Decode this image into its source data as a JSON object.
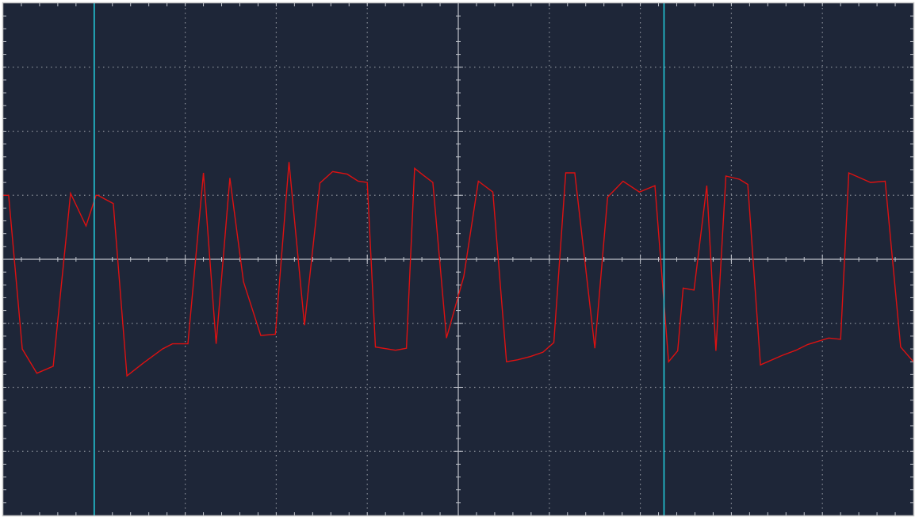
{
  "colors": {
    "screen_background": "#1e2638",
    "frame": "#c8c8c8",
    "grid": "#8a8f99",
    "axis": "#c0c4cc",
    "trace": "#dd1111",
    "cursor": "#22c8d8"
  },
  "chart_data": {
    "type": "line",
    "title": "",
    "xlabel": "",
    "ylabel": "",
    "grid": true,
    "divisions": {
      "x": 10,
      "y": 8
    },
    "minor_ticks_per_division": 5,
    "xlim": [
      -5,
      5
    ],
    "ylim": [
      -4,
      4
    ],
    "cursors_x": [
      -4.0,
      2.26
    ],
    "series": [
      {
        "x": [
          -5.0,
          -4.94,
          -4.79,
          -4.63,
          -4.45,
          -4.26,
          -4.09,
          -3.98,
          -3.96,
          -3.79,
          -3.64,
          -3.46,
          -3.25,
          -3.14,
          -2.97,
          -2.8,
          -2.66,
          -2.51,
          -2.36,
          -2.17,
          -2.01,
          -1.86,
          -1.69,
          -1.52,
          -1.38,
          -1.22,
          -1.1,
          -1.0,
          -0.91,
          -0.69,
          -0.57,
          -0.48,
          -0.39,
          -0.28,
          -0.13,
          0.06,
          0.22,
          0.38,
          0.53,
          0.65,
          0.79,
          0.93,
          1.05,
          1.18,
          1.28,
          1.5,
          1.64,
          1.81,
          1.99,
          2.16,
          2.31,
          2.41,
          2.47,
          2.59,
          2.73,
          2.83,
          2.94,
          3.09,
          3.18,
          3.32,
          3.56,
          3.71,
          3.84,
          4.07,
          4.2,
          4.29,
          4.53,
          4.69,
          4.86,
          5.0
        ],
        "y": [
          1.0,
          1.0,
          -1.4,
          -1.78,
          -1.67,
          1.03,
          0.52,
          1.0,
          1.0,
          0.87,
          -1.82,
          -1.62,
          -1.4,
          -1.32,
          -1.32,
          1.35,
          -1.32,
          1.27,
          -0.35,
          -1.19,
          -1.17,
          1.52,
          -1.03,
          1.19,
          1.37,
          1.33,
          1.22,
          1.2,
          -1.37,
          -1.42,
          -1.39,
          1.42,
          1.32,
          1.2,
          -1.23,
          -0.27,
          1.22,
          1.05,
          -1.6,
          -1.57,
          -1.52,
          -1.45,
          -1.3,
          1.35,
          1.35,
          -1.39,
          0.97,
          1.22,
          1.05,
          1.15,
          -1.6,
          -1.43,
          -0.45,
          -0.48,
          1.15,
          -1.43,
          1.3,
          1.25,
          1.17,
          -1.65,
          -1.5,
          -1.42,
          -1.33,
          -1.23,
          -1.25,
          1.35,
          1.2,
          1.22,
          -1.37,
          -1.6
        ]
      }
    ]
  }
}
